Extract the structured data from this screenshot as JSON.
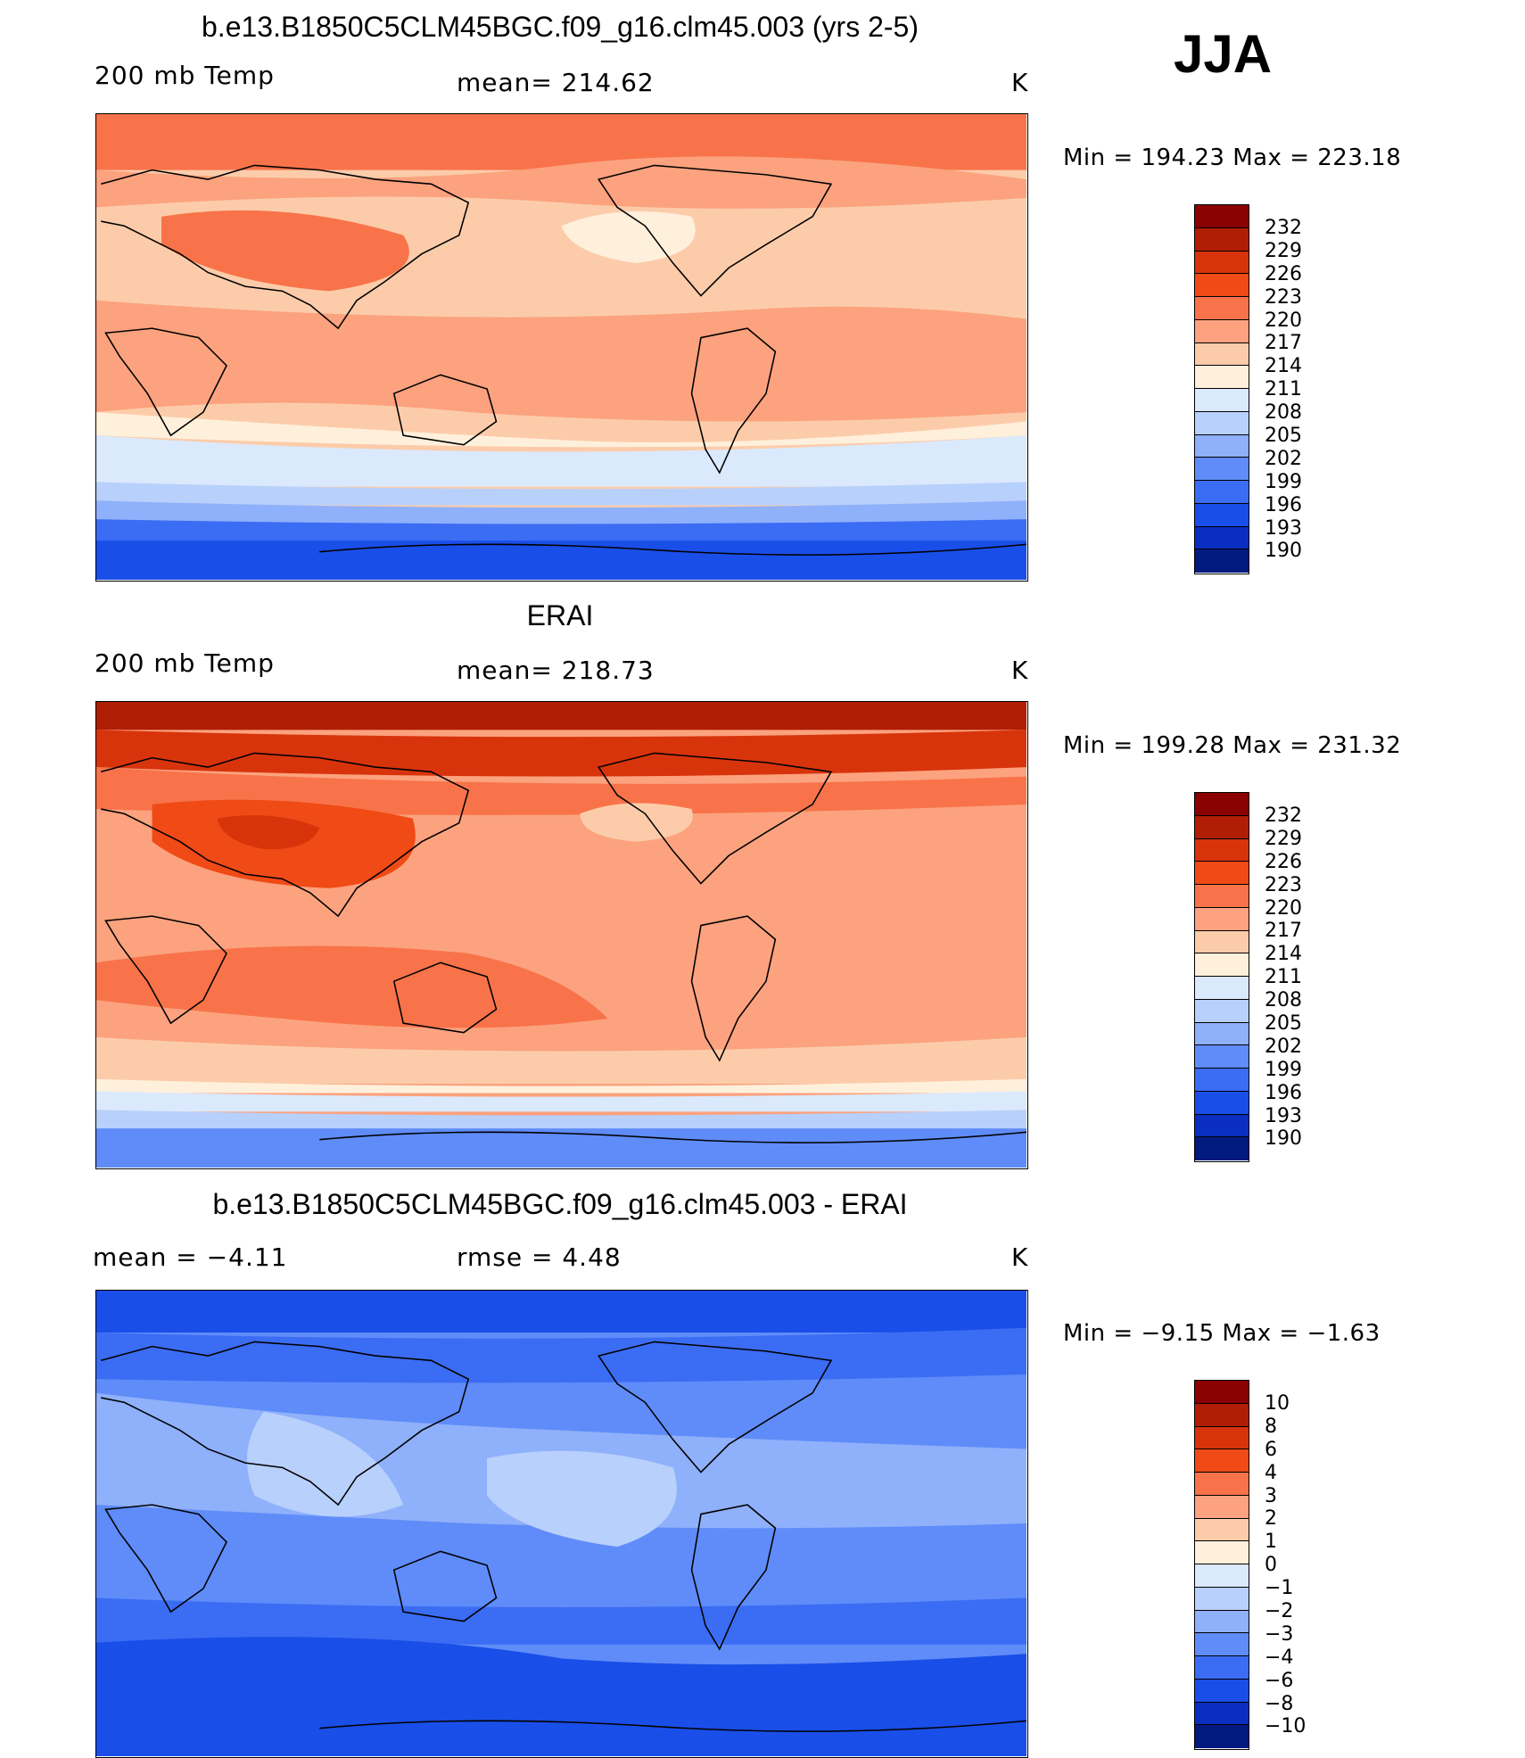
{
  "season": "JJA",
  "panels": [
    {
      "id": "model",
      "title": "b.e13.B1850C5CLM45BGC.f09_g16.clm45.003 (yrs 2-5)",
      "left_label": "200 mb Temp",
      "center_label": "mean= 214.62",
      "units": "K",
      "minmax": "Min = 194.23 Max = 223.18",
      "colorbar_labels": [
        "232",
        "229",
        "226",
        "223",
        "220",
        "217",
        "214",
        "211",
        "208",
        "205",
        "202",
        "199",
        "196",
        "193",
        "190"
      ],
      "colorbar_colors": [
        "#8b0000",
        "#b01e05",
        "#d8340c",
        "#f04a16",
        "#f8734a",
        "#fca27e",
        "#fcccaa",
        "#fff0dc",
        "#dbe9fc",
        "#b8d0fc",
        "#8fb0fa",
        "#5f8cf8",
        "#3b6cf4",
        "#1a4ee8",
        "#0a2ec0",
        "#001a80"
      ]
    },
    {
      "id": "obs",
      "title": "ERAI",
      "left_label": "200 mb Temp",
      "center_label": "mean= 218.73",
      "units": "K",
      "minmax": "Min = 199.28 Max = 231.32",
      "colorbar_labels": [
        "232",
        "229",
        "226",
        "223",
        "220",
        "217",
        "214",
        "211",
        "208",
        "205",
        "202",
        "199",
        "196",
        "193",
        "190"
      ],
      "colorbar_colors": [
        "#8b0000",
        "#b01e05",
        "#d8340c",
        "#f04a16",
        "#f8734a",
        "#fca27e",
        "#fcccaa",
        "#fff0dc",
        "#dbe9fc",
        "#b8d0fc",
        "#8fb0fa",
        "#5f8cf8",
        "#3b6cf4",
        "#1a4ee8",
        "#0a2ec0",
        "#001a80"
      ]
    },
    {
      "id": "diff",
      "title": "b.e13.B1850C5CLM45BGC.f09_g16.clm45.003 - ERAI",
      "left_label": "mean =   −4.11",
      "center_label": "rmse =    4.48",
      "units": "K",
      "minmax": "Min =  −9.15 Max =  −1.63",
      "colorbar_labels": [
        "10",
        "8",
        "6",
        "4",
        "3",
        "2",
        "1",
        "0",
        "−1",
        "−2",
        "−3",
        "−4",
        "−6",
        "−8",
        "−10"
      ],
      "colorbar_colors": [
        "#8b0000",
        "#b01e05",
        "#d8340c",
        "#f04a16",
        "#f8734a",
        "#fca27e",
        "#fcccaa",
        "#fff0dc",
        "#dbe9fc",
        "#b8d0fc",
        "#8fb0fa",
        "#5f8cf8",
        "#3b6cf4",
        "#1a4ee8",
        "#0a2ec0",
        "#001a80"
      ]
    }
  ]
}
